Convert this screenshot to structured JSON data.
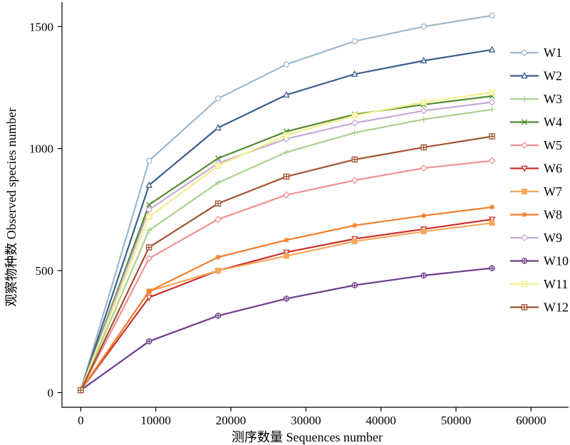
{
  "chart_data": {
    "type": "line",
    "title": "",
    "xlabel": "测序数量 Sequences number",
    "ylabel": "观察物种数 Observed species number",
    "xlim": [
      -2500,
      65000
    ],
    "ylim": [
      -60,
      1600
    ],
    "xticks": [
      0,
      10000,
      20000,
      30000,
      40000,
      50000,
      60000
    ],
    "yticks": [
      0,
      500,
      1000,
      1500
    ],
    "x": [
      0,
      9100,
      18300,
      27400,
      36500,
      45700,
      54800
    ],
    "legend_position": "right",
    "grid": false,
    "series": [
      {
        "name": "W1",
        "color": "#9db8cc",
        "marker": "circle",
        "values": [
          10,
          950,
          1205,
          1345,
          1440,
          1500,
          1545
        ]
      },
      {
        "name": "W2",
        "color": "#3b5e8c",
        "marker": "triangle-up",
        "values": [
          10,
          850,
          1085,
          1220,
          1305,
          1360,
          1405
        ]
      },
      {
        "name": "W3",
        "color": "#a9d18e",
        "marker": "plus",
        "values": [
          10,
          665,
          860,
          985,
          1065,
          1120,
          1160
        ]
      },
      {
        "name": "W4",
        "color": "#4e8b2c",
        "marker": "x",
        "values": [
          10,
          770,
          960,
          1070,
          1140,
          1180,
          1215
        ]
      },
      {
        "name": "W5",
        "color": "#f0908f",
        "marker": "diamond",
        "values": [
          10,
          550,
          710,
          810,
          870,
          920,
          950
        ]
      },
      {
        "name": "W6",
        "color": "#c8302c",
        "marker": "triangle-down",
        "values": [
          10,
          390,
          500,
          575,
          630,
          670,
          710
        ]
      },
      {
        "name": "W7",
        "color": "#f6a85a",
        "marker": "square",
        "values": [
          10,
          415,
          500,
          560,
          620,
          660,
          695
        ]
      },
      {
        "name": "W8",
        "color": "#f07f2b",
        "marker": "asterisk",
        "values": [
          10,
          415,
          555,
          625,
          685,
          725,
          760
        ]
      },
      {
        "name": "W9",
        "color": "#c7a8d8",
        "marker": "diamond",
        "values": [
          10,
          750,
          940,
          1040,
          1105,
          1155,
          1190
        ]
      },
      {
        "name": "W10",
        "color": "#6e3c8c",
        "marker": "circle-plus",
        "values": [
          10,
          210,
          315,
          385,
          440,
          480,
          510
        ]
      },
      {
        "name": "W11",
        "color": "#f3f08a",
        "marker": "square-x",
        "values": [
          10,
          720,
          930,
          1055,
          1135,
          1190,
          1230
        ]
      },
      {
        "name": "W12",
        "color": "#a0522d",
        "marker": "square-plus",
        "values": [
          10,
          595,
          775,
          885,
          955,
          1005,
          1050
        ]
      }
    ]
  }
}
